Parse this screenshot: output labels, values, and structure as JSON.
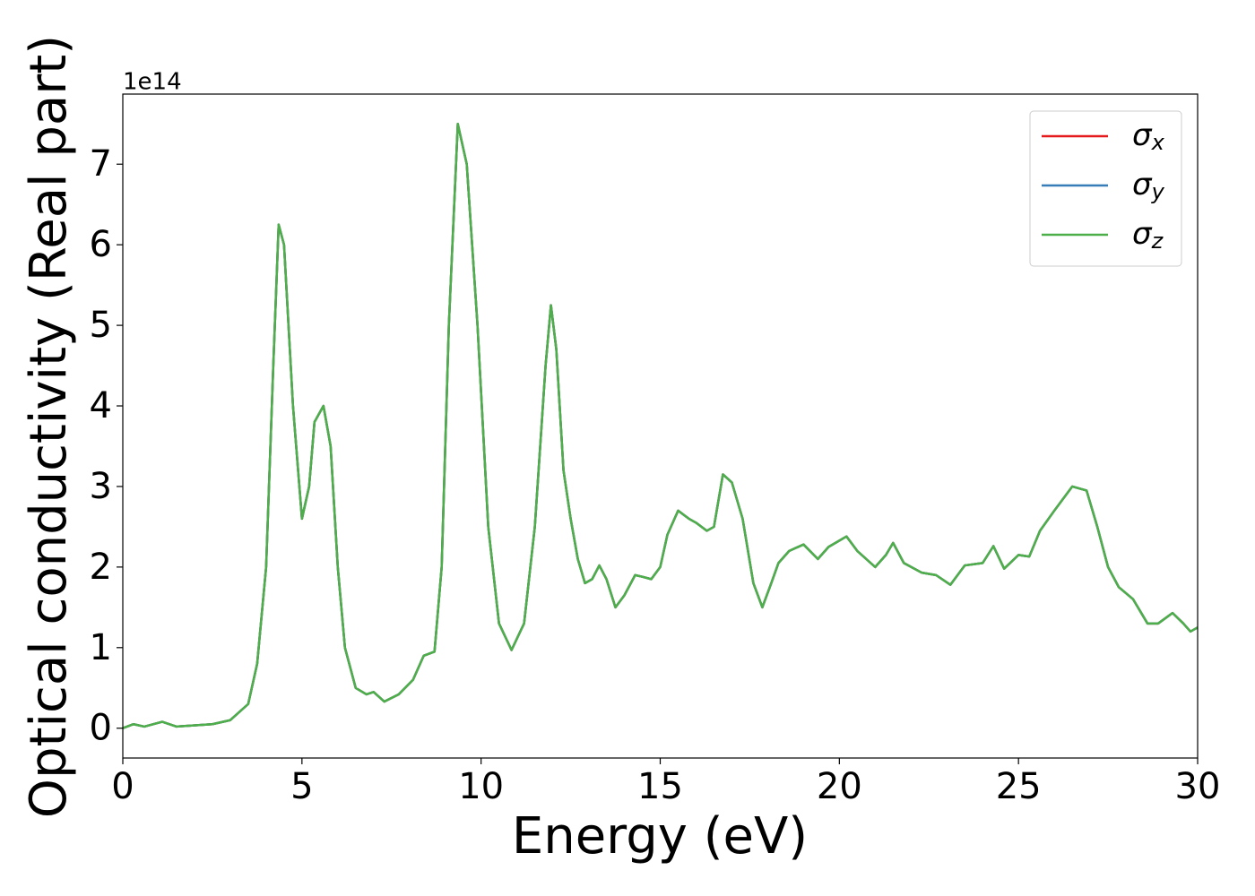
{
  "chart_data": {
    "type": "line",
    "xlabel": "Energy (eV)",
    "ylabel": "Optical conductivity (Real part)",
    "y_offset_label": "1e14",
    "x": [
      0,
      0.3,
      0.6,
      1.1,
      1.5,
      2.5,
      3.0,
      3.5,
      3.75,
      4.0,
      4.2,
      4.35,
      4.5,
      4.75,
      5.0,
      5.2,
      5.35,
      5.6,
      5.8,
      6.0,
      6.2,
      6.5,
      6.8,
      7.0,
      7.3,
      7.7,
      8.1,
      8.4,
      8.7,
      8.9,
      9.1,
      9.35,
      9.6,
      9.9,
      10.2,
      10.5,
      10.85,
      11.2,
      11.5,
      11.8,
      11.95,
      12.1,
      12.3,
      12.5,
      12.7,
      12.9,
      13.1,
      13.3,
      13.5,
      13.75,
      14.0,
      14.3,
      14.5,
      14.75,
      15.0,
      15.2,
      15.5,
      15.8,
      16.0,
      16.3,
      16.5,
      16.75,
      17.0,
      17.3,
      17.6,
      17.85,
      18.1,
      18.3,
      18.6,
      19.0,
      19.4,
      19.7,
      20.2,
      20.5,
      21.0,
      21.3,
      21.5,
      21.8,
      22.3,
      22.7,
      23.1,
      23.5,
      24.0,
      24.3,
      24.6,
      25.0,
      25.3,
      25.6,
      26.0,
      26.5,
      26.9,
      27.2,
      27.5,
      27.8,
      28.2,
      28.6,
      28.9,
      29.3,
      29.6,
      29.8,
      30
    ],
    "series": [
      {
        "name": "σx",
        "color": "#e41a1c",
        "values": [
          0.0,
          0.05,
          0.02,
          0.08,
          0.02,
          0.05,
          0.1,
          0.3,
          0.8,
          2.0,
          4.5,
          6.25,
          6.0,
          4.0,
          2.6,
          3.0,
          3.8,
          4.0,
          3.5,
          2.0,
          1.0,
          0.5,
          0.42,
          0.45,
          0.33,
          0.42,
          0.6,
          0.9,
          0.95,
          2.0,
          5.0,
          7.5,
          7.0,
          5.0,
          2.5,
          1.3,
          0.97,
          1.3,
          2.5,
          4.5,
          5.25,
          4.7,
          3.2,
          2.6,
          2.1,
          1.8,
          1.85,
          2.02,
          1.85,
          1.5,
          1.65,
          1.9,
          1.88,
          1.85,
          2.0,
          2.4,
          2.7,
          2.6,
          2.55,
          2.45,
          2.5,
          3.15,
          3.05,
          2.6,
          1.8,
          1.5,
          1.8,
          2.05,
          2.2,
          2.28,
          2.1,
          2.25,
          2.38,
          2.2,
          2.0,
          2.15,
          2.3,
          2.05,
          1.93,
          1.9,
          1.78,
          2.02,
          2.05,
          2.26,
          1.98,
          2.15,
          2.13,
          2.45,
          2.7,
          3.0,
          2.95,
          2.5,
          2.0,
          1.75,
          1.6,
          1.3,
          1.3,
          1.43,
          1.3,
          1.2,
          1.25
        ]
      },
      {
        "name": "σy",
        "color": "#377eb8",
        "values": [
          0.0,
          0.05,
          0.02,
          0.08,
          0.02,
          0.05,
          0.1,
          0.3,
          0.8,
          2.0,
          4.5,
          6.25,
          6.0,
          4.0,
          2.6,
          3.0,
          3.8,
          4.0,
          3.5,
          2.0,
          1.0,
          0.5,
          0.42,
          0.45,
          0.33,
          0.42,
          0.6,
          0.9,
          0.95,
          2.0,
          5.0,
          7.5,
          7.0,
          5.0,
          2.5,
          1.3,
          0.97,
          1.3,
          2.5,
          4.5,
          5.25,
          4.7,
          3.2,
          2.6,
          2.1,
          1.8,
          1.85,
          2.02,
          1.85,
          1.5,
          1.65,
          1.9,
          1.88,
          1.85,
          2.0,
          2.4,
          2.7,
          2.6,
          2.55,
          2.45,
          2.5,
          3.15,
          3.05,
          2.6,
          1.8,
          1.5,
          1.8,
          2.05,
          2.2,
          2.28,
          2.1,
          2.25,
          2.38,
          2.2,
          2.0,
          2.15,
          2.3,
          2.05,
          1.93,
          1.9,
          1.78,
          2.02,
          2.05,
          2.26,
          1.98,
          2.15,
          2.13,
          2.45,
          2.7,
          3.0,
          2.95,
          2.5,
          2.0,
          1.75,
          1.6,
          1.3,
          1.3,
          1.43,
          1.3,
          1.2,
          1.25
        ]
      },
      {
        "name": "σz",
        "color": "#4daf4a",
        "values": [
          0.0,
          0.05,
          0.02,
          0.08,
          0.02,
          0.05,
          0.1,
          0.3,
          0.8,
          2.0,
          4.5,
          6.25,
          6.0,
          4.0,
          2.6,
          3.0,
          3.8,
          4.0,
          3.5,
          2.0,
          1.0,
          0.5,
          0.42,
          0.45,
          0.33,
          0.42,
          0.6,
          0.9,
          0.95,
          2.0,
          5.0,
          7.5,
          7.0,
          5.0,
          2.5,
          1.3,
          0.97,
          1.3,
          2.5,
          4.5,
          5.25,
          4.7,
          3.2,
          2.6,
          2.1,
          1.8,
          1.85,
          2.02,
          1.85,
          1.5,
          1.65,
          1.9,
          1.88,
          1.85,
          2.0,
          2.4,
          2.7,
          2.6,
          2.55,
          2.45,
          2.5,
          3.15,
          3.05,
          2.6,
          1.8,
          1.5,
          1.8,
          2.05,
          2.2,
          2.28,
          2.1,
          2.25,
          2.38,
          2.2,
          2.0,
          2.15,
          2.3,
          2.05,
          1.93,
          1.9,
          1.78,
          2.02,
          2.05,
          2.26,
          1.98,
          2.15,
          2.13,
          2.45,
          2.7,
          3.0,
          2.95,
          2.5,
          2.0,
          1.75,
          1.6,
          1.3,
          1.3,
          1.43,
          1.3,
          1.2,
          1.25
        ]
      }
    ],
    "xlim": [
      0,
      30
    ],
    "xticks": [
      0,
      5,
      10,
      15,
      20,
      25,
      30
    ],
    "ylim": [
      -0.37,
      7.87
    ],
    "yticks": [
      0,
      1,
      2,
      3,
      4,
      5,
      6,
      7
    ],
    "grid": false,
    "legend": "upper right"
  }
}
